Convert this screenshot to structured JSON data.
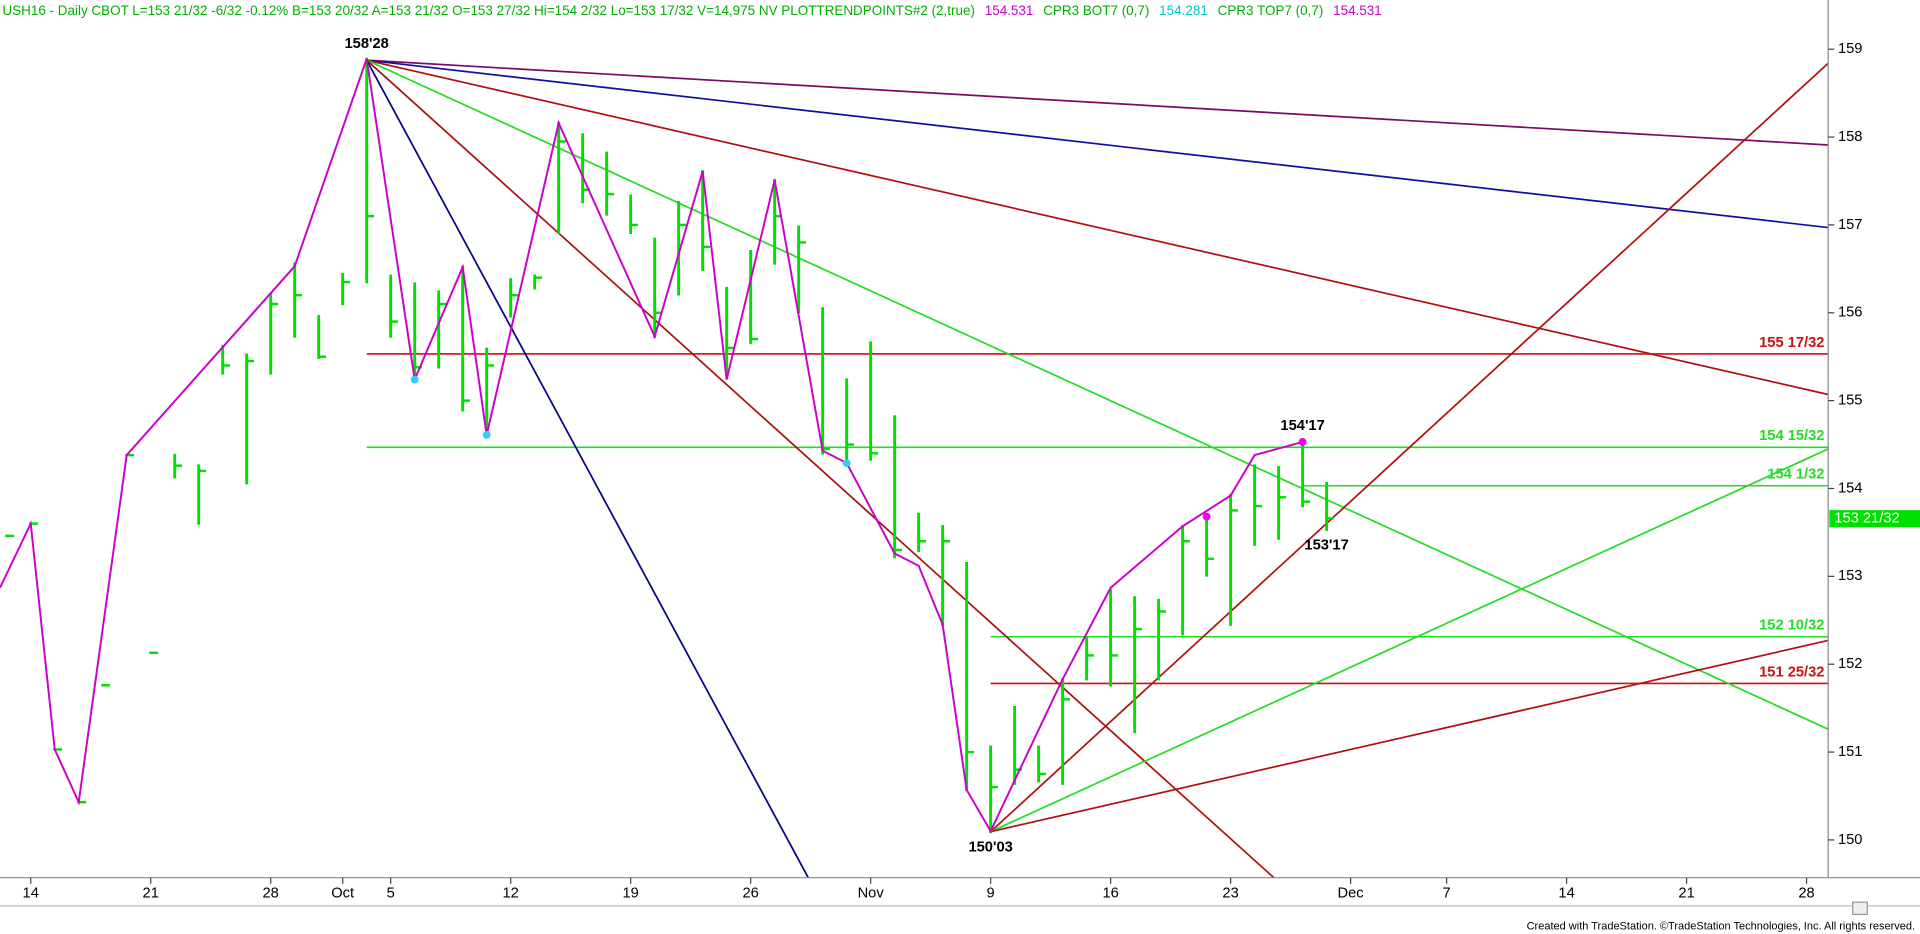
{
  "chart_data": {
    "type": "ohlc",
    "header": [
      {
        "text": "USH16 - Daily  CBOT  L=153 21/32  -6/32  -0.12%  B=153 20/32  A=153 21/32  O=153 27/32  Hi=154 2/32  Lo=153 17/32  V=14,975  NV  PLOTTRENDPOINTS#2 (2,true)",
        "color": "#00b000"
      },
      {
        "text": "154.531",
        "color": "#cc00cc"
      },
      {
        "text": "CPR3 BOT7 (0,7)",
        "color": "#00b000"
      },
      {
        "text": "154.281",
        "color": "#00c8c8"
      },
      {
        "text": "CPR3 TOP7 (0,7)",
        "color": "#00b000"
      },
      {
        "text": "154.531",
        "color": "#cc00cc"
      }
    ],
    "footer": "Created with TradeStation. ©TradeStation Technologies, Inc. All rights reserved.",
    "xlim": [
      -1.28,
      74.9
    ],
    "ylim": [
      149.57,
      159.56
    ],
    "yticks": [
      150,
      151,
      152,
      153,
      154,
      155,
      156,
      157,
      158,
      159
    ],
    "xticks": [
      {
        "value": 0,
        "label": "14"
      },
      {
        "value": 5,
        "label": "21"
      },
      {
        "value": 10,
        "label": "28"
      },
      {
        "value": 13,
        "label": "Oct"
      },
      {
        "value": 15,
        "label": "5"
      },
      {
        "value": 20,
        "label": "12"
      },
      {
        "value": 25,
        "label": "19"
      },
      {
        "value": 30,
        "label": "26"
      },
      {
        "value": 35,
        "label": "Nov"
      },
      {
        "value": 40,
        "label": "9"
      },
      {
        "value": 45,
        "label": "16"
      },
      {
        "value": 50,
        "label": "23"
      },
      {
        "value": 55,
        "label": "Dec"
      },
      {
        "value": 59,
        "label": "7"
      },
      {
        "value": 64,
        "label": "14"
      },
      {
        "value": 69,
        "label": "21"
      },
      {
        "value": 74,
        "label": "28"
      }
    ],
    "bar_color": "#00e000",
    "x": [
      -1,
      0,
      1,
      2,
      3,
      4,
      5,
      6,
      7,
      8,
      9,
      10,
      11,
      12,
      13,
      14,
      15,
      16,
      17,
      18,
      19,
      20,
      21,
      22,
      23,
      24,
      25,
      26,
      27,
      28,
      29,
      30,
      31,
      32,
      33,
      34,
      35,
      36,
      37,
      38,
      39,
      40,
      41,
      42,
      43,
      44,
      45,
      46,
      47,
      48,
      49,
      50,
      51,
      52,
      53,
      54
    ],
    "high": [
      153.46,
      153.6,
      151.03,
      150.43,
      151.76,
      154.38,
      152.13,
      154.38,
      154.26,
      155.62,
      155.52,
      156.21,
      156.56,
      155.96,
      156.44,
      158.89,
      156.42,
      156.33,
      156.24,
      156.52,
      155.59,
      156.38,
      156.42,
      158.16,
      158.03,
      157.82,
      157.33,
      156.84,
      157.26,
      157.61,
      156.28,
      156.7,
      157.51,
      156.98,
      156.05,
      155.24,
      155.66,
      154.82,
      153.71,
      153.57,
      153.15,
      151.06,
      151.51,
      151.06,
      151.83,
      152.29,
      152.84,
      152.76,
      152.73,
      153.57,
      153.64,
      153.92,
      154.26,
      154.24,
      154.53,
      154.06
    ],
    "low": [
      153.46,
      153.6,
      151.03,
      150.43,
      151.76,
      154.38,
      152.13,
      154.13,
      153.6,
      155.31,
      154.06,
      155.31,
      155.73,
      155.49,
      156.1,
      156.35,
      155.73,
      155.24,
      155.38,
      154.89,
      154.61,
      155.96,
      156.28,
      156.91,
      157.26,
      157.12,
      156.91,
      155.73,
      156.21,
      156.49,
      155.31,
      155.66,
      156.56,
      156.01,
      154.4,
      154.26,
      154.33,
      153.22,
      153.29,
      152.45,
      150.57,
      150.09,
      150.64,
      150.67,
      150.64,
      151.83,
      151.76,
      151.23,
      151.83,
      152.34,
      153.01,
      152.45,
      153.36,
      153.43,
      153.8,
      153.53
    ],
    "close": [
      153.46,
      153.6,
      151.03,
      150.43,
      151.76,
      154.38,
      152.13,
      154.26,
      154.2,
      155.4,
      155.45,
      156.1,
      156.2,
      155.5,
      156.35,
      157.1,
      155.9,
      155.38,
      156.1,
      155.0,
      155.4,
      156.2,
      156.4,
      157.95,
      157.4,
      157.35,
      157.0,
      156.0,
      157.0,
      156.75,
      155.6,
      155.7,
      157.1,
      156.8,
      154.45,
      154.5,
      154.4,
      153.3,
      153.4,
      153.4,
      151.0,
      150.6,
      150.8,
      150.75,
      151.6,
      152.1,
      152.1,
      152.4,
      152.6,
      153.4,
      153.2,
      153.75,
      153.8,
      153.9,
      153.85,
      153.66
    ],
    "swing": {
      "color": "#cc00cc",
      "x": [
        -1.28,
        0,
        1,
        2,
        4,
        11,
        14,
        16,
        18,
        19,
        22,
        26,
        28,
        29,
        31,
        33,
        34,
        36,
        37,
        38,
        39,
        40,
        43,
        45,
        48,
        50,
        51,
        53
      ],
      "y": [
        152.87,
        153.6,
        151.03,
        150.43,
        154.38,
        156.53,
        158.89,
        155.24,
        156.52,
        154.61,
        158.16,
        155.73,
        157.61,
        155.24,
        157.51,
        154.43,
        154.29,
        153.26,
        153.12,
        152.45,
        150.57,
        150.1,
        151.83,
        152.87,
        153.57,
        153.92,
        154.38,
        154.53
      ]
    },
    "pivots": [
      {
        "x": 16,
        "y": 155.24,
        "color": "#33ccff"
      },
      {
        "x": 19,
        "y": 154.61,
        "color": "#33ccff"
      },
      {
        "x": 34,
        "y": 154.29,
        "color": "#33ccff"
      },
      {
        "x": 49,
        "y": 153.68,
        "color": "#ee00ee"
      },
      {
        "x": 53,
        "y": 154.53,
        "color": "#ee00ee"
      }
    ],
    "trendlines": [
      {
        "color": "#7a0a66",
        "x": [
          14,
          74.9
        ],
        "y": [
          158.875,
          157.91
        ]
      },
      {
        "color": "#1010a0",
        "x": [
          14,
          74.9
        ],
        "y": [
          158.875,
          156.97
        ]
      },
      {
        "color": "#b01010",
        "x": [
          14,
          74.9
        ],
        "y": [
          158.875,
          155.07
        ]
      },
      {
        "color": "#22dd22",
        "x": [
          14,
          74.9
        ],
        "y": [
          158.875,
          151.26
        ]
      },
      {
        "color": "#aa1010",
        "x": [
          14,
          51.8
        ],
        "y": [
          158.875,
          149.57
        ]
      },
      {
        "color": "#000088",
        "x": [
          14,
          32.4
        ],
        "y": [
          158.875,
          149.57
        ]
      },
      {
        "color": "#b01010",
        "x": [
          40,
          74.9
        ],
        "y": [
          150.09375,
          158.84
        ]
      },
      {
        "color": "#22dd22",
        "x": [
          40,
          74.9
        ],
        "y": [
          150.09375,
          154.45
        ]
      },
      {
        "color": "#b01010",
        "x": [
          40,
          74.9
        ],
        "y": [
          150.09375,
          152.27
        ]
      }
    ],
    "levels": [
      {
        "label": "155 17/32",
        "value": 155.53125,
        "x_start": 14,
        "color": "#cc1111"
      },
      {
        "label": "154 15/32",
        "value": 154.46875,
        "x_start": 14,
        "color": "#22dd22"
      },
      {
        "label": "154 1/32",
        "value": 154.03125,
        "x_start": 53,
        "color": "#22dd22"
      },
      {
        "label": "152 10/32",
        "value": 152.3125,
        "x_start": 40,
        "color": "#22dd22"
      },
      {
        "label": "151 25/32",
        "value": 151.78125,
        "x_start": 40,
        "color": "#cc1111"
      }
    ],
    "annotations": [
      {
        "text": "158'28",
        "x": 14,
        "y": 158.875,
        "position": "above"
      },
      {
        "text": "150'03",
        "x": 40,
        "y": 150.09375,
        "position": "below"
      },
      {
        "text": "154'17",
        "x": 53,
        "y": 154.53125,
        "position": "above"
      },
      {
        "text": "153'17",
        "x": 54,
        "y": 153.53125,
        "position": "below"
      }
    ],
    "last_price": {
      "label": "153 21/32",
      "value": 153.65625,
      "color": "#00e000"
    }
  }
}
